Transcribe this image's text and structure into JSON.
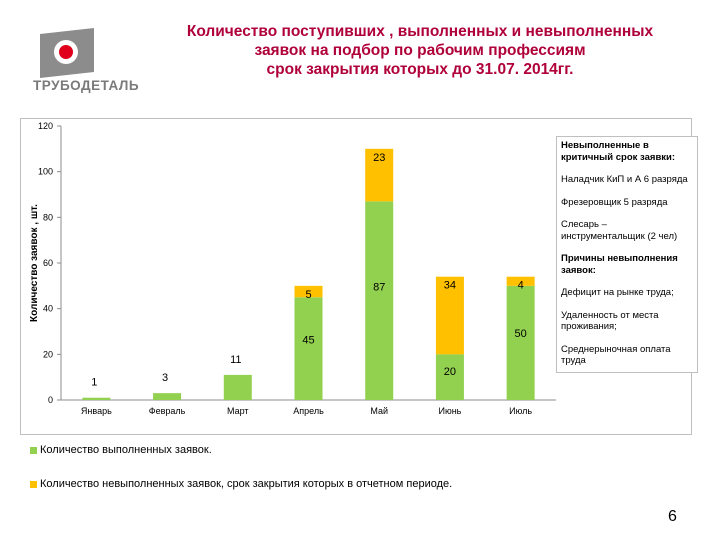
{
  "brand": {
    "name": "ТРУБОДЕТАЛЬ",
    "accent_color": "#e0001b",
    "logo_gray": "#8c8c8c"
  },
  "title": {
    "line1": "Количество поступивших , выполненных  и невыполненных",
    "line2": "заявок на подбор по рабочим профессиям",
    "line3": "срок закрытия которых до 31.07. 2014гг."
  },
  "chart_data": {
    "type": "bar",
    "stacked": true,
    "categories": [
      "Январь",
      "Февраль",
      "Март",
      "Апрель",
      "Май",
      "Июнь",
      "Июль"
    ],
    "series": [
      {
        "name": "Количество выполненных  заявок.",
        "color": "#92d050",
        "values": [
          1,
          3,
          11,
          45,
          87,
          20,
          50
        ],
        "labels": [
          "1",
          "3",
          "11",
          "45",
          "87",
          "20",
          "50"
        ]
      },
      {
        "name": "Количество невыполненных заявок, срок закрытия которых   в отчетном периоде.",
        "color": "#ffc000",
        "values": [
          0,
          0,
          0,
          5,
          23,
          34,
          4
        ],
        "labels": [
          "",
          "",
          "",
          "5",
          "23",
          "34",
          "4"
        ]
      }
    ],
    "ylabel": "Количество заявок , шт.",
    "ylim": [
      0,
      120
    ],
    "yticks": [
      "0",
      "20",
      "40",
      "60",
      "80",
      "100",
      "120"
    ],
    "gridlines": false,
    "legend_position": "bottom"
  },
  "side_legend": [
    {
      "text": "Невыполненные в критичный срок заявки:",
      "bold": true
    },
    {
      "text": "Наладчик КиП и А 6 разряда",
      "bold": false
    },
    {
      "text": "Фрезеровщик 5 разряда",
      "bold": false
    },
    {
      "text": "Слесарь – инструментальщик (2 чел)",
      "bold": false
    },
    {
      "text": "Причины невыполнения заявок:",
      "bold": true
    },
    {
      "text": "Дефицит на рынке труда;",
      "bold": false
    },
    {
      "text": "Удаленность от места проживания;",
      "bold": false
    },
    {
      "text": "Среднерыночная оплата труда",
      "bold": false
    }
  ],
  "page_number": "6"
}
